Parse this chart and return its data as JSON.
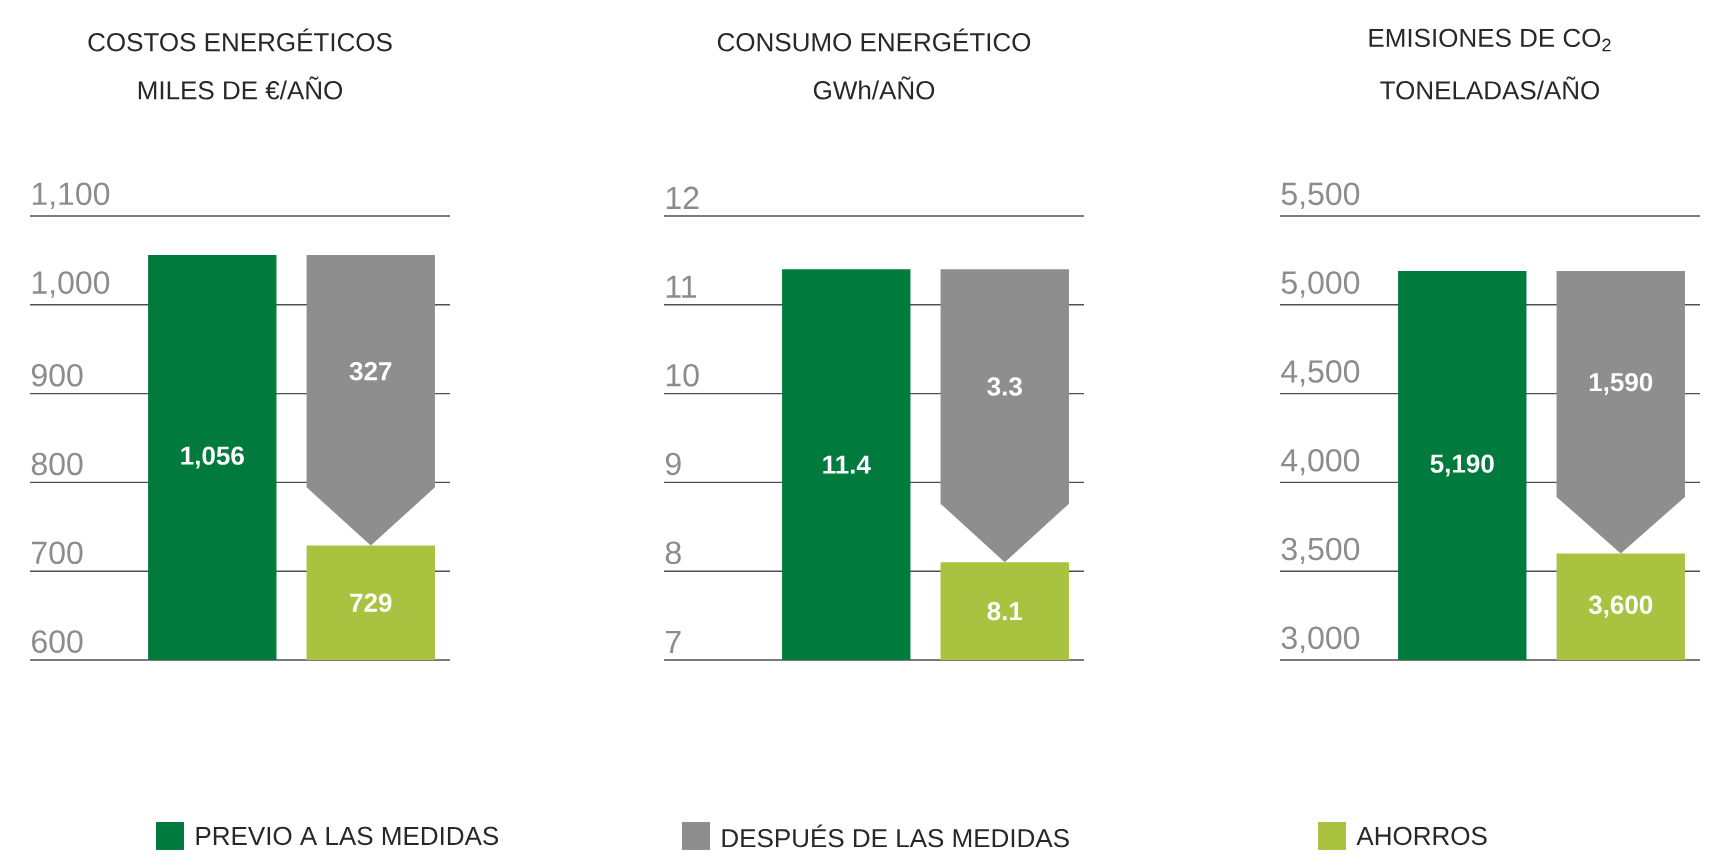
{
  "chart_data": [
    {
      "type": "bar",
      "title": "COSTOS ENERGÉTICOS",
      "subtitle": "MILES DE €/AÑO",
      "categories": [
        null,
        null
      ],
      "ylim": [
        600,
        1100
      ],
      "yticks": [
        600,
        700,
        800,
        900,
        {
          "value": 1000,
          "label": "1,000"
        },
        {
          "value": 1100,
          "label": "1,100"
        }
      ],
      "grid": "y",
      "legend": "bottom",
      "series": [
        {
          "name": "PREVIO A LAS MEDIDAS",
          "color": "#007a3d",
          "values": [
            1056,
            null
          ],
          "value_labels": [
            "1,056",
            null
          ]
        },
        {
          "name": "DESPUÉS DE LAS MEDIDAS",
          "color": "#8e8e8e",
          "values": [
            null,
            327
          ],
          "base": [
            null,
            729
          ],
          "value_labels": [
            null,
            "327"
          ]
        },
        {
          "name": "AHORROS",
          "color": "#a9c23f",
          "values": [
            null,
            729
          ],
          "value_labels": [
            null,
            "729"
          ]
        }
      ]
    },
    {
      "type": "bar",
      "title": "CONSUMO ENERGÉTICO",
      "subtitle": "GWh/AÑO",
      "categories": [
        null,
        null
      ],
      "ylim": [
        7,
        12
      ],
      "yticks": [
        7,
        8,
        9,
        10,
        11,
        12
      ],
      "grid": "y",
      "series": [
        {
          "color": "#007a3d",
          "values": [
            11.4,
            null
          ],
          "value_labels": [
            "11.4",
            null
          ]
        },
        {
          "color": "#8e8e8e",
          "values": [
            null,
            3.3
          ],
          "base": [
            null,
            8.1
          ],
          "value_labels": [
            null,
            "3.3"
          ]
        },
        {
          "color": "#a9c23f",
          "values": [
            null,
            8.1
          ],
          "value_labels": [
            null,
            "8.1"
          ]
        }
      ]
    },
    {
      "type": "bar",
      "title": "EMISIONES DE CO$_{2}$",
      "subtitle": "TONELADAS/AÑO",
      "categories": [
        null,
        null
      ],
      "ylim": [
        3000,
        5500
      ],
      "yticks": [
        {
          "value": 3000,
          "label": "3,000"
        },
        {
          "value": 3500,
          "label": "3,500"
        },
        {
          "value": 4000,
          "label": "4,000"
        },
        {
          "value": 4500,
          "label": "4,500"
        },
        {
          "value": 5000,
          "label": "5,000"
        },
        {
          "value": 5500,
          "label": "5,500"
        }
      ],
      "grid": "y",
      "series": [
        {
          "color": "#007a3d",
          "values": [
            5190,
            null
          ],
          "value_labels": [
            "5,190",
            null
          ]
        },
        {
          "color": "#8e8e8e",
          "values": [
            null,
            1590
          ],
          "base": [
            null,
            3600
          ],
          "value_labels": [
            null,
            "1,590"
          ]
        },
        {
          "color": "#a9c23f",
          "values": [
            null,
            3600
          ],
          "value_labels": [
            null,
            "3,600"
          ]
        }
      ]
    }
  ]
}
